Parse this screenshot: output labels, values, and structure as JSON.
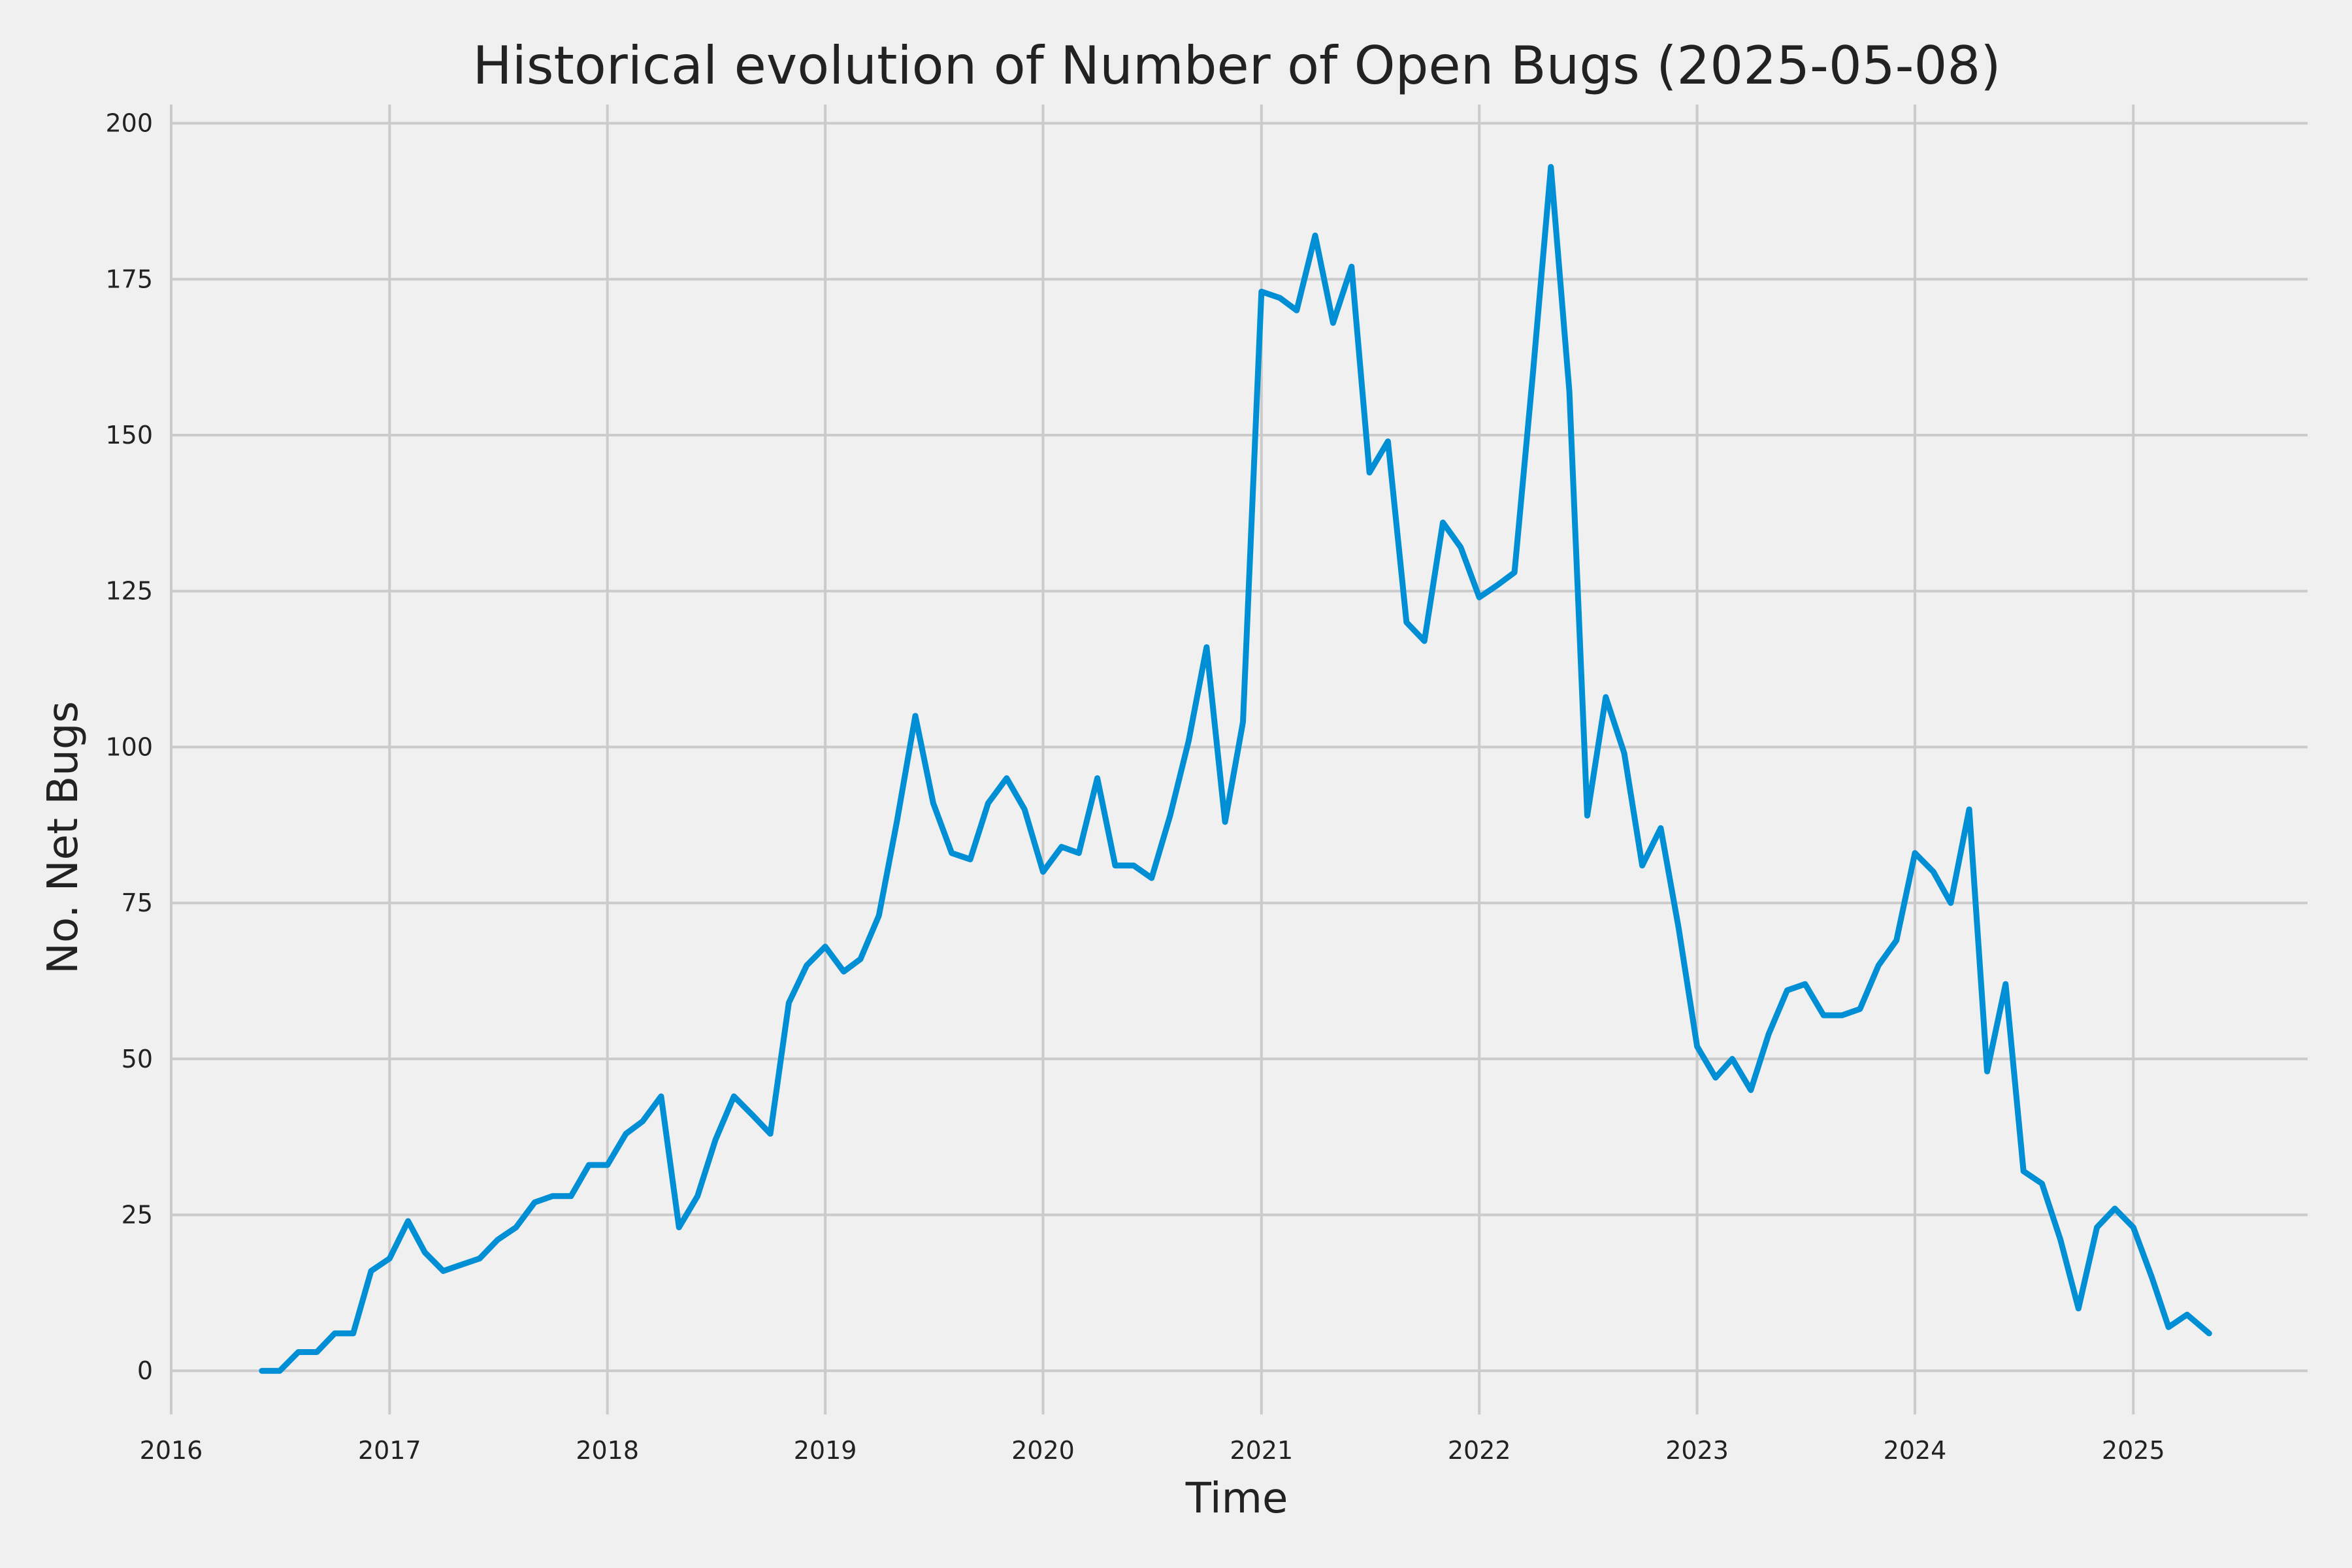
{
  "chart_data": {
    "type": "line",
    "title": "Historical evolution of Number of Open Bugs (2025-05-08)",
    "xlabel": "Time",
    "ylabel": "No. Net Bugs",
    "xlim": [
      "2016-01-01",
      "2025-10-20"
    ],
    "ylim": [
      -7,
      203
    ],
    "x_ticks": [
      "2016",
      "2017",
      "2018",
      "2019",
      "2020",
      "2021",
      "2022",
      "2023",
      "2024",
      "2025"
    ],
    "y_ticks": [
      0,
      25,
      50,
      75,
      100,
      125,
      150,
      175,
      200
    ],
    "grid": true,
    "colors": {
      "line": "#008fd5",
      "background": "#f0f0f0",
      "grid": "#cbcbcb"
    },
    "series": [
      {
        "x": [
          "2016-06-01",
          "2016-07-01",
          "2016-08-01",
          "2016-09-01",
          "2016-10-01",
          "2016-11-01",
          "2016-12-01",
          "2017-01-01",
          "2017-02-01",
          "2017-03-01",
          "2017-04-01",
          "2017-05-01",
          "2017-06-01",
          "2017-07-01",
          "2017-08-01",
          "2017-09-01",
          "2017-10-01",
          "2017-11-01",
          "2017-12-01",
          "2018-01-01",
          "2018-02-01",
          "2018-03-01",
          "2018-04-01",
          "2018-05-01",
          "2018-06-01",
          "2018-07-01",
          "2018-08-01",
          "2018-09-01",
          "2018-10-01",
          "2018-11-01",
          "2018-12-01",
          "2019-01-01",
          "2019-02-01",
          "2019-03-01",
          "2019-04-01",
          "2019-05-01",
          "2019-06-01",
          "2019-07-01",
          "2019-08-01",
          "2019-09-01",
          "2019-10-01",
          "2019-11-01",
          "2019-12-01",
          "2020-01-01",
          "2020-02-01",
          "2020-03-01",
          "2020-04-01",
          "2020-05-01",
          "2020-06-01",
          "2020-07-01",
          "2020-08-01",
          "2020-09-01",
          "2020-10-01",
          "2020-11-01",
          "2020-12-01",
          "2021-01-01",
          "2021-02-01",
          "2021-03-01",
          "2021-04-01",
          "2021-05-01",
          "2021-06-01",
          "2021-07-01",
          "2021-08-01",
          "2021-09-01",
          "2021-10-01",
          "2021-11-01",
          "2021-12-01",
          "2022-01-01",
          "2022-02-01",
          "2022-03-01",
          "2022-04-01",
          "2022-05-01",
          "2022-06-01",
          "2022-07-01",
          "2022-08-01",
          "2022-09-01",
          "2022-10-01",
          "2022-11-01",
          "2022-12-01",
          "2023-01-01",
          "2023-02-01",
          "2023-03-01",
          "2023-04-01",
          "2023-05-01",
          "2023-06-01",
          "2023-07-01",
          "2023-08-01",
          "2023-09-01",
          "2023-10-01",
          "2023-11-01",
          "2023-12-01",
          "2024-01-01",
          "2024-02-01",
          "2024-03-01",
          "2024-04-01",
          "2024-05-01",
          "2024-06-01",
          "2024-07-01",
          "2024-08-01",
          "2024-09-01",
          "2024-10-01",
          "2024-11-01",
          "2024-12-01",
          "2025-01-01",
          "2025-02-01",
          "2025-03-01",
          "2025-04-01",
          "2025-05-08"
        ],
        "y": [
          0,
          0,
          3,
          3,
          6,
          6,
          16,
          18,
          24,
          19,
          16,
          17,
          18,
          21,
          23,
          27,
          28,
          28,
          33,
          33,
          38,
          40,
          44,
          23,
          28,
          37,
          44,
          41,
          38,
          59,
          65,
          68,
          64,
          66,
          73,
          88,
          105,
          91,
          83,
          82,
          91,
          95,
          90,
          80,
          84,
          83,
          95,
          81,
          81,
          79,
          89,
          101,
          116,
          88,
          104,
          173,
          172,
          170,
          182,
          168,
          177,
          144,
          149,
          120,
          117,
          136,
          132,
          124,
          126,
          128,
          160,
          193,
          157,
          89,
          108,
          99,
          81,
          87,
          71,
          52,
          47,
          50,
          45,
          54,
          61,
          62,
          57,
          57,
          58,
          65,
          69,
          83,
          80,
          75,
          90,
          48,
          62,
          32,
          30,
          21,
          10,
          23,
          26,
          23,
          15,
          7,
          9,
          6
        ]
      }
    ]
  }
}
